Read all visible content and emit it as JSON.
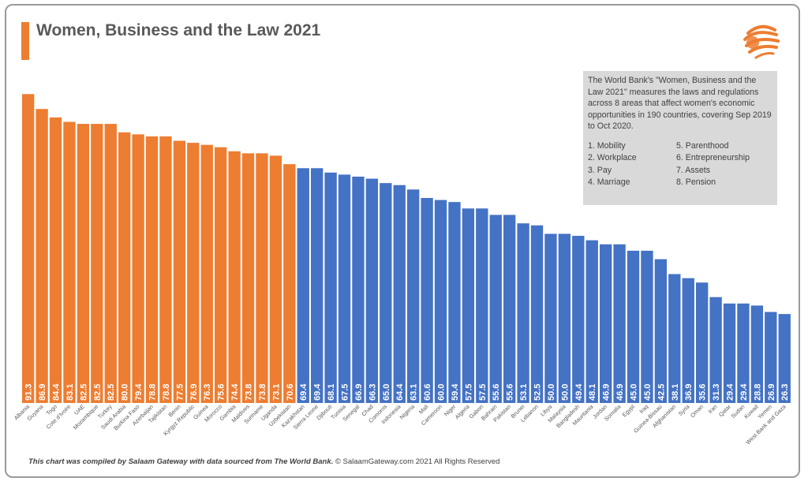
{
  "title": "Women, Business and the Law 2021",
  "info": {
    "description": "The World Bank's \"Women, Business and the Law 2021\" measures the laws and regulations across 8 areas that affect women's economic opportunities in 190 countries, covering Sep 2019 to Oct 2020.",
    "areas": [
      "1. Mobility",
      "5. Parenthood",
      "2. Workplace",
      "6. Entrepreneurship",
      "3. Pay",
      "7. Assets",
      "4. Marriage",
      "8. Pension"
    ]
  },
  "footer": {
    "source": "This chart was compiled by Salaam Gateway with data sourced from The World Bank.",
    "copyright": "© SalaamGateway.com 2021 All Rights Reserved"
  },
  "colors": {
    "highlight": "#ed7d31",
    "base": "#4472c4",
    "title": "#595959"
  },
  "logo_icon": "salaam-gateway-logo-icon",
  "chart_data": {
    "type": "bar",
    "title": "Women, Business and the Law 2021",
    "xlabel": "",
    "ylabel": "",
    "ylim": [
      0,
      100
    ],
    "grid": false,
    "highlight_count": 20,
    "categories": [
      "Albania",
      "Guyana",
      "Togo",
      "Cote d'Ivoire",
      "UAE",
      "Mozambique",
      "Turkey",
      "Saudi Arabia",
      "Burkina Faso",
      "Azerbaijan",
      "Tajikistan",
      "Benin",
      "Kyrgyz Republic",
      "Guinea",
      "Morocco",
      "Gambia",
      "Maldives",
      "Suriname",
      "Uganda",
      "Uzbekistan",
      "Kazakhstan",
      "Sierra Leone",
      "Djibouti",
      "Tunisia",
      "Senegal",
      "Chad",
      "Comoros",
      "Indonesia",
      "Nigeria",
      "Mali",
      "Cameroon",
      "Niger",
      "Algeria",
      "Gabon",
      "Bahrain",
      "Pakistan",
      "Brunei",
      "Lebanon",
      "Libya",
      "Malaysia",
      "Bangladesh",
      "Mauritania",
      "Jordan",
      "Somalia",
      "Egypt",
      "Iraq",
      "Guinea-Bissau",
      "Afghanistan",
      "Syria",
      "Oman",
      "Iran",
      "Qatar",
      "Sudan",
      "Kuwait",
      "Yemen",
      "West Bank and Gaza"
    ],
    "values": [
      91.3,
      86.9,
      84.4,
      83.1,
      82.5,
      82.5,
      82.5,
      80.0,
      79.4,
      78.8,
      78.8,
      77.5,
      76.9,
      76.3,
      75.6,
      74.4,
      73.8,
      73.8,
      73.1,
      70.6,
      69.4,
      69.4,
      68.1,
      67.5,
      66.9,
      66.3,
      65.0,
      64.4,
      63.1,
      60.6,
      60.0,
      59.4,
      57.5,
      57.5,
      55.6,
      55.6,
      53.1,
      52.5,
      50.0,
      50.0,
      49.4,
      48.1,
      46.9,
      46.9,
      45.0,
      45.0,
      42.5,
      38.1,
      36.9,
      35.6,
      31.3,
      29.4,
      29.4,
      28.8,
      26.9,
      26.3
    ],
    "value_labels": [
      "91.3",
      "86.9",
      "84.4",
      "83.1",
      "82.5",
      "82.5",
      "82.5",
      "80.0",
      "79.4",
      "78.8",
      "78.8",
      "77.5",
      "76.9",
      "76.3",
      "75.6",
      "74.4",
      "73.8",
      "73.8",
      "73.1",
      "70.6",
      "69.4",
      "69.4",
      "68.1",
      "67.5",
      "66.9",
      "66.3",
      "65.0",
      "64.4",
      "63.1",
      "60.6",
      "60.0",
      "59.4",
      "57.5",
      "57.5",
      "55.6",
      "55.6",
      "53.1",
      "52.5",
      "50.0",
      "50.0",
      "49.4",
      "48.1",
      "46.9",
      "46.9",
      "45.0",
      "45.0",
      "42.5",
      "38.1",
      "36.9",
      "35.6",
      "31.3",
      "29.4",
      "29.4",
      "28.8",
      "26.9",
      "26.3"
    ]
  }
}
